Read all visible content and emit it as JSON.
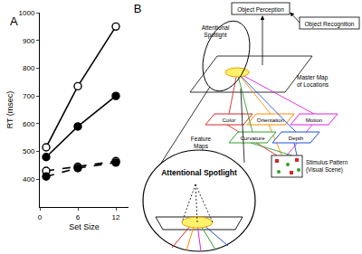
{
  "chart_data": {
    "type": "line",
    "annotations": [
      "A"
    ],
    "x_label": "Set Size",
    "y_label": "RT (msec)",
    "x": [
      1,
      6,
      12
    ],
    "series": [
      {
        "color": "#000000",
        "marker": "open-circle",
        "line_style": "solid",
        "values": [
          515,
          735,
          950
        ]
      },
      {
        "color": "#000000",
        "marker": "circle",
        "line_style": "solid",
        "values": [
          480,
          590,
          700
        ]
      },
      {
        "color": "#000000",
        "marker": "open-circle",
        "line_style": "dash",
        "values": [
          430,
          445,
          465
        ]
      },
      {
        "color": "#000000",
        "marker": "circle",
        "line_style": "dash",
        "values": [
          410,
          440,
          460
        ]
      }
    ],
    "xlim": [
      0,
      14
    ],
    "xticks": [
      0,
      6,
      12
    ],
    "ylim": [
      300,
      1000
    ],
    "yticks": [
      400,
      500,
      600,
      700,
      800,
      900,
      1000
    ],
    "grid": false
  },
  "diagram": {
    "label": "B",
    "object_perception": "Object Perception",
    "object_recognition": "Object Recognition",
    "spotlight_label": [
      "Attentional",
      "Spotlight"
    ],
    "master_map": [
      "Master Map",
      "of Locations"
    ],
    "feature_maps": {
      "label": [
        "Feature",
        "Maps"
      ],
      "maps": [
        {
          "label": "Color",
          "color": "#d62728"
        },
        {
          "label": "Orientation",
          "color": "#ff8c00"
        },
        {
          "label": "Motion",
          "color": "#e020e0"
        },
        {
          "label": "Curvature",
          "color": "#2ca02c"
        },
        {
          "label": "Depth",
          "color": "#1f4fd6"
        }
      ]
    },
    "stimulus": [
      "Stimulus Pattern",
      "(Visual Scene)"
    ],
    "inset_label": "Attentional Spotlight"
  }
}
